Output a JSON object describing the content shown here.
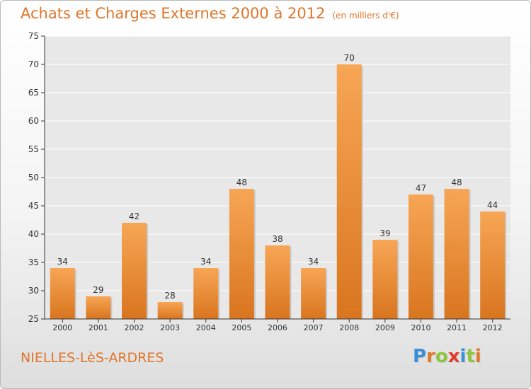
{
  "title": {
    "main": "Achats et Charges Externes 2000 à 2012",
    "unit": "(en milliers d'€)"
  },
  "commune": "NIELLES-LèS-ARDRES",
  "logo": {
    "text": "Proxiti",
    "letter_colors": [
      "#3a8fd6",
      "#e07a2b",
      "#8cc63f",
      "#e03a2b",
      "#3a8fd6",
      "#8cc63f",
      "#e07a2b"
    ]
  },
  "colors": {
    "bar_light": "#f7a655",
    "bar_dark": "#d9751f",
    "axis": "#333333",
    "grid": "#ffffff",
    "title": "#e0762b"
  },
  "chart_data": {
    "type": "bar",
    "categories": [
      "2000",
      "2001",
      "2002",
      "2003",
      "2004",
      "2005",
      "2006",
      "2007",
      "2008",
      "2009",
      "2010",
      "2011",
      "2012"
    ],
    "values": [
      34,
      29,
      42,
      28,
      34,
      48,
      38,
      34,
      70,
      39,
      47,
      48,
      44
    ],
    "title": "Achats et Charges Externes 2000 à 2012",
    "ylim": [
      25,
      75
    ],
    "yticks": [
      25,
      30,
      35,
      40,
      45,
      50,
      55,
      60,
      65,
      70,
      75
    ],
    "grid": true,
    "data_labels": true
  }
}
